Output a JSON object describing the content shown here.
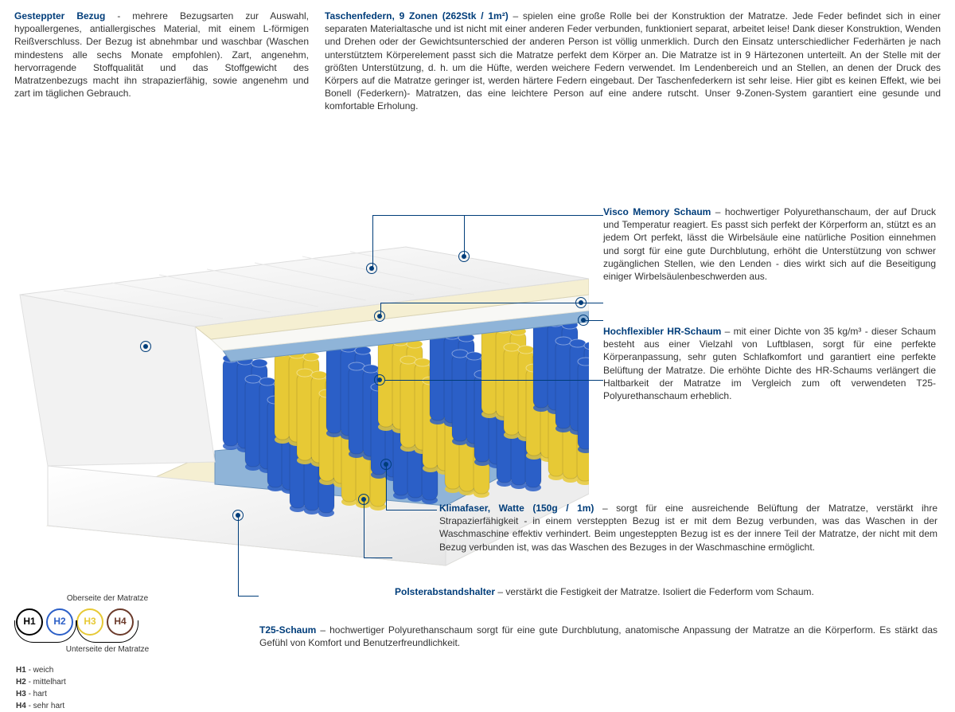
{
  "top": {
    "left": {
      "title": "Gesteppter Bezug",
      "body": " - mehrere Bezugsarten zur Auswahl, hypoallergenes, antiallergisches Material, mit einem L-förmigen Reißverschluss. Der Bezug ist abnehmbar und waschbar (Waschen mindestens alle sechs Monate empfohlen). Zart, angenehm, hervorragende Stoffqualität und das Stoffgewicht des Matratzenbezugs macht ihn strapazierfähig, sowie angenehm und zart im täglichen Gebrauch."
    },
    "right": {
      "title": "Taschenfedern, 9 Zonen (262Stk / 1m²)",
      "body": " – spielen eine große Rolle bei der Konstruktion der Matratze. Jede Feder befindet sich in einer separaten Materialtasche und ist nicht mit einer anderen Feder verbunden, funktioniert separat, arbeitet leise! Dank dieser Konstruktion, Wenden und Drehen oder der Gewichtsunterschied der anderen Person ist völlig unmerklich. Durch den Einsatz unterschiedlicher Federhärten je nach unterstütztem Körperelement passt sich die Matratze perfekt dem Körper an. Die Matratze ist in 9 Härtezonen unterteilt. An der Stelle mit der größten Unterstützung, d. h. um die Hüfte, werden weichere Federn verwendet. Im Lendenbereich und an Stellen, an denen der Druck des Körpers auf die Matratze geringer ist, werden härtere Federn eingebaut. Der Taschenfederkern ist sehr leise. Hier gibt es keinen Effekt, wie bei Bonell (Federkern)- Matratzen, das eine leichtere Person auf eine andere rutscht. Unser 9-Zonen-System garantiert eine gesunde und komfortable Erholung."
    }
  },
  "callouts": {
    "visco": {
      "title": "Visco Memory Schaum",
      "body": " – hochwertiger Polyurethanschaum, der auf Druck und Temperatur reagiert. Es passt sich perfekt der Körperform an, stützt es an jedem Ort perfekt, lässt die Wirbelsäule eine natürliche Position einnehmen und sorgt für eine gute Durchblutung, erhöht die Unterstützung von schwer zugänglichen Stellen, wie den Lenden - dies wirkt sich auf die Beseitigung einiger Wirbelsäulenbeschwerden aus."
    },
    "hr": {
      "title": "Hochflexibler HR-Schaum",
      "body": " – mit einer Dichte von 35 kg/m³ - dieser Schaum besteht aus einer Vielzahl von Luftblasen, sorgt für eine perfekte Körperanpassung, sehr guten Schlafkomfort und garantiert eine perfekte Belüftung der Matratze. Die erhöhte Dichte des HR-Schaums verlängert die Haltbarkeit der Matratze im Vergleich zum oft verwendeten T25-Polyurethanschaum erheblich."
    },
    "klima": {
      "title": "Klimafaser, Watte (150g / 1m)",
      "body": " – sorgt für eine ausreichende Belüftung der Matratze, verstärkt ihre Strapazierfähigkeit - in einem versteppten Bezug ist er mit dem Bezug verbunden, was das Waschen in der Waschmaschine effektiv verhindert. Beim ungesteppten Bezug ist es der innere Teil der Matratze, der nicht mit dem Bezug verbunden ist, was das Waschen des Bezuges in der Waschmaschine ermöglicht."
    },
    "polster": {
      "title": "Polsterabstandshalter",
      "body": " – verstärkt die Festigkeit der Matratze. Isoliert die Federform vom Schaum."
    },
    "t25": {
      "title": "T25-Schaum",
      "body": " – hochwertiger Polyurethanschaum sorgt für eine gute Durchblutung, anatomische Anpassung der Matratze an die Körperform. Es stärkt das Gefühl von Komfort und Benutzerfreundlichkeit."
    }
  },
  "legend": {
    "top_label": "Oberseite der Matratze",
    "bottom_label": "Unterseite der Matratze",
    "items": [
      {
        "code": "H1",
        "color": "#000000",
        "label": "weich"
      },
      {
        "code": "H2",
        "color": "#2b5fc7",
        "label": "mittelhart"
      },
      {
        "code": "H3",
        "color": "#e7c935",
        "label": "hart"
      },
      {
        "code": "H4",
        "color": "#6b3a2a",
        "label": "sehr hart"
      }
    ]
  },
  "colors": {
    "accent": "#003d7a",
    "spring_blue": "#2b5fc7",
    "spring_yellow": "#e7c935",
    "foam_cream": "#f5efd2",
    "foam_white": "#f8f8f5",
    "blue_pad": "#8fb4d8"
  }
}
